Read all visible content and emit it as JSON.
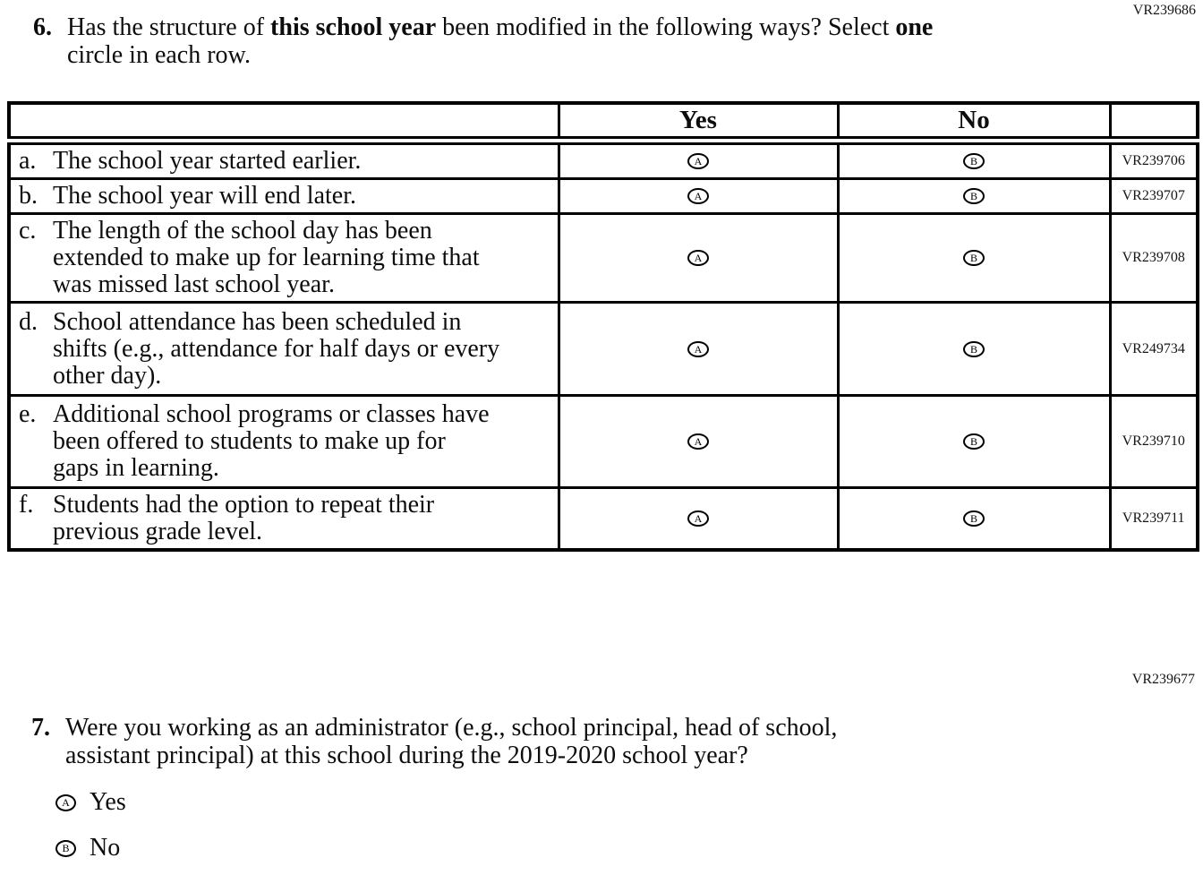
{
  "codes": {
    "q6_section": "VR239686",
    "q7_section": "VR239677"
  },
  "question6": {
    "number": "6.",
    "line1": {
      "t1": "Has the structure of ",
      "b1": "this school year",
      "t2": " been modified in the following ways? Select ",
      "b2": "one"
    },
    "line2": "circle in each row."
  },
  "table": {
    "header": {
      "yes": "Yes",
      "no": "No"
    },
    "bubbles": {
      "yes_letter": "A",
      "no_letter": "B"
    },
    "rows": [
      {
        "letter": "a.",
        "lines": [
          "The school year started earlier."
        ],
        "code": "VR239706"
      },
      {
        "letter": "b.",
        "lines": [
          "The school year will end later."
        ],
        "code": "VR239707"
      },
      {
        "letter": "c.",
        "lines": [
          "The length of the school day has been",
          "extended to make up for learning time that",
          "was missed last school year."
        ],
        "code": "VR239708"
      },
      {
        "letter": "d.",
        "lines": [
          "School attendance has been scheduled in",
          "shifts (e.g., attendance for half days or every",
          "other day)."
        ],
        "code": "VR249734"
      },
      {
        "letter": "e.",
        "lines": [
          "Additional school programs or classes have",
          "been offered to students to make up for",
          "gaps in learning."
        ],
        "code": "VR239710"
      },
      {
        "letter": "f.",
        "lines": [
          "Students had the option to repeat their",
          "previous grade level."
        ],
        "code": "VR239711"
      }
    ]
  },
  "question7": {
    "number": "7.",
    "line1": "Were you working as an administrator (e.g., school principal, head of school,",
    "line2": "assistant principal) at this school during the 2019-2020 school year?",
    "options": [
      {
        "letter": "A",
        "label": "Yes"
      },
      {
        "letter": "B",
        "label": "No"
      }
    ]
  }
}
